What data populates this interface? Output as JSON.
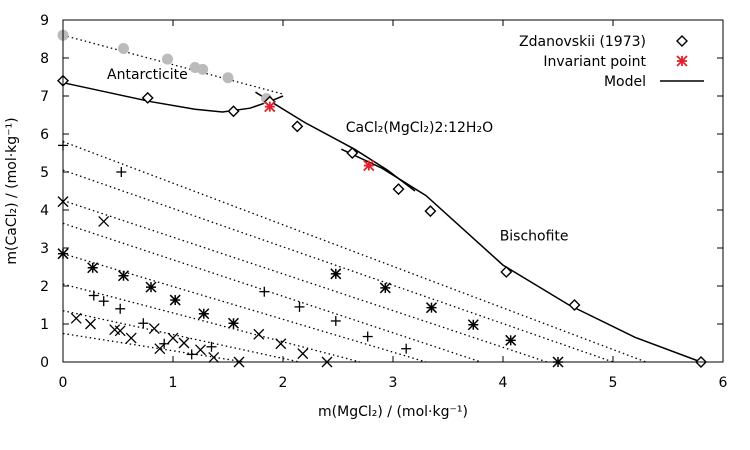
{
  "chart_data": {
    "type": "scatter",
    "xlabel": "m(MgCl₂) / (mol·kg⁻¹)",
    "ylabel": "m(CaCl₂) / (mol·kg⁻¹)",
    "xlim": [
      0,
      6
    ],
    "ylim": [
      0,
      9
    ],
    "x_ticks": [
      0,
      1,
      2,
      3,
      4,
      5,
      6
    ],
    "y_ticks": [
      0,
      1,
      2,
      3,
      4,
      5,
      6,
      7,
      8,
      9
    ],
    "legend_position": "top-right",
    "legend": [
      {
        "label": "Zdanovskii (1973)",
        "marker": "diamond"
      },
      {
        "label": "Invariant point",
        "marker": "asterisk",
        "color": "#e0202a"
      },
      {
        "label": "Model",
        "marker": "line"
      }
    ],
    "annotations": [
      {
        "text": "Antarcticite",
        "x": 0.4,
        "y": 7.45
      },
      {
        "text": "CaCl₂(MgCl₂)2:12H₂O",
        "x": 2.57,
        "y": 6.05
      },
      {
        "text": "Bischofite",
        "x": 3.97,
        "y": 3.2
      }
    ],
    "series": [
      {
        "name": "Zdanovskii (1973)",
        "marker": "diamond",
        "color": "#000000",
        "x": [
          0.0,
          0.77,
          1.55,
          1.88,
          2.13,
          2.63,
          3.05,
          3.34,
          4.03,
          4.65,
          5.8
        ],
        "y": [
          7.4,
          6.95,
          6.6,
          6.85,
          6.2,
          5.5,
          4.55,
          3.97,
          2.37,
          1.5,
          0.0
        ]
      },
      {
        "name": "Invariant point",
        "marker": "asterisk",
        "color": "#e0202a",
        "x": [
          1.88,
          2.78
        ],
        "y": [
          6.72,
          5.17
        ]
      },
      {
        "marker": "circle",
        "color": "#bbbbbb",
        "x": [
          0.0,
          0.55,
          0.95,
          1.2,
          1.27,
          1.5,
          1.85
        ],
        "y": [
          8.6,
          8.25,
          7.97,
          7.75,
          7.7,
          7.48,
          6.93
        ]
      },
      {
        "marker": "star",
        "color": "#000000",
        "x": [
          0.0,
          0.27,
          0.55,
          0.8,
          1.02,
          1.28,
          1.55,
          2.48,
          2.93,
          3.35,
          3.73,
          4.07,
          4.5
        ],
        "y": [
          2.85,
          2.48,
          2.27,
          1.97,
          1.63,
          1.27,
          1.02,
          2.32,
          1.95,
          1.43,
          0.98,
          0.57,
          0.0
        ]
      },
      {
        "marker": "plus",
        "color": "#000000",
        "x": [
          0.0,
          0.28,
          0.37,
          0.52,
          0.53,
          0.73,
          0.92,
          1.17,
          1.35,
          1.83,
          2.15,
          2.48,
          2.77,
          3.12
        ],
        "y": [
          5.7,
          1.75,
          1.6,
          1.4,
          5.0,
          1.02,
          0.48,
          0.2,
          0.4,
          1.85,
          1.45,
          1.08,
          0.67,
          0.35
        ]
      },
      {
        "marker": "cross",
        "color": "#000000",
        "x": [
          0.0,
          0.12,
          0.25,
          0.37,
          0.47,
          0.52,
          0.62,
          0.83,
          0.88,
          1.0,
          1.1,
          1.25,
          1.37,
          1.6,
          1.78,
          1.98,
          2.18,
          2.4
        ],
        "y": [
          4.22,
          1.15,
          1.0,
          3.7,
          0.85,
          0.82,
          0.63,
          0.88,
          0.35,
          0.63,
          0.5,
          0.32,
          0.12,
          0.0,
          0.73,
          0.48,
          0.22,
          0.0
        ]
      },
      {
        "name": "Model",
        "marker": "line",
        "color": "#000000",
        "segments": [
          [
            [
              0.0,
              7.35
            ],
            [
              0.4,
              7.1
            ],
            [
              0.8,
              6.85
            ],
            [
              1.2,
              6.65
            ],
            [
              1.45,
              6.58
            ],
            [
              1.7,
              6.68
            ],
            [
              1.9,
              6.88
            ],
            [
              2.0,
              7.0
            ]
          ],
          [
            [
              1.75,
              7.1
            ],
            [
              2.2,
              6.3
            ],
            [
              2.65,
              5.6
            ],
            [
              2.95,
              5.05
            ],
            [
              3.2,
              4.5
            ]
          ],
          [
            [
              2.53,
              5.6
            ],
            [
              2.9,
              5.1
            ],
            [
              3.3,
              4.38
            ],
            [
              4.0,
              2.55
            ],
            [
              4.6,
              1.5
            ],
            [
              5.2,
              0.65
            ],
            [
              5.8,
              0.0
            ]
          ]
        ]
      },
      {
        "marker": "dotted",
        "color": "#000000",
        "segments": [
          [
            [
              0.0,
              8.6
            ],
            [
              2.0,
              7.05
            ]
          ],
          [
            [
              0.0,
              5.8
            ],
            [
              5.3,
              0.0
            ]
          ],
          [
            [
              0.0,
              5.05
            ],
            [
              5.0,
              0.0
            ]
          ],
          [
            [
              0.0,
              4.25
            ],
            [
              4.4,
              0.0
            ]
          ],
          [
            [
              0.0,
              3.65
            ],
            [
              3.8,
              0.0
            ]
          ],
          [
            [
              0.0,
              2.85
            ],
            [
              3.3,
              0.0
            ]
          ],
          [
            [
              0.0,
              2.05
            ],
            [
              2.7,
              0.0
            ]
          ],
          [
            [
              0.0,
              1.35
            ],
            [
              2.15,
              0.0
            ]
          ],
          [
            [
              0.0,
              0.75
            ],
            [
              1.65,
              0.0
            ]
          ]
        ]
      }
    ]
  }
}
